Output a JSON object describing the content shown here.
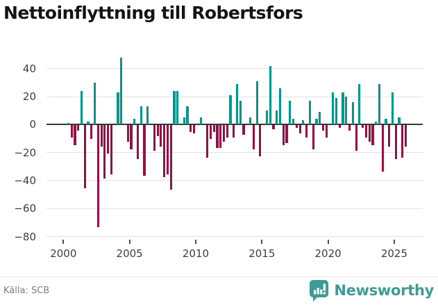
{
  "title": "Nettoinflyttning till Robertsfors",
  "source": "Källa: SCB",
  "brand": {
    "name": "Newsworthy",
    "color": "#3e9c94",
    "icon": "bar-chart-speech-bubble-icon"
  },
  "colors": {
    "positive": "#009790",
    "negative": "#970f46",
    "zero_line": "#363636",
    "gridline": "#e2e2e2",
    "title_text": "#141414",
    "axis_text": "#3d3d3d",
    "source_text": "#7d7d7d"
  },
  "chart_data": {
    "type": "bar",
    "title": "Nettoinflyttning till Robertsfors",
    "frequency": "quarterly",
    "grid": true,
    "ylim": [
      -80,
      50
    ],
    "y_ticks": [
      40,
      20,
      0,
      -20,
      -40,
      -60,
      -80
    ],
    "x_tick_labels": [
      "2000",
      "2005",
      "2010",
      "2015",
      "2020",
      "2025"
    ],
    "positive_color": "#009790",
    "negative_color": "#970f46",
    "quarters": [
      "2000Q1",
      "2000Q2",
      "2000Q3",
      "2000Q4",
      "2001Q1",
      "2001Q2",
      "2001Q3",
      "2001Q4",
      "2002Q1",
      "2002Q2",
      "2002Q3",
      "2002Q4",
      "2003Q1",
      "2003Q2",
      "2003Q3",
      "2003Q4",
      "2004Q1",
      "2004Q2",
      "2004Q3",
      "2004Q4",
      "2005Q1",
      "2005Q2",
      "2005Q3",
      "2005Q4",
      "2006Q1",
      "2006Q2",
      "2006Q3",
      "2006Q4",
      "2007Q1",
      "2007Q2",
      "2007Q3",
      "2007Q4",
      "2008Q1",
      "2008Q2",
      "2008Q3",
      "2008Q4",
      "2009Q1",
      "2009Q2",
      "2009Q3",
      "2009Q4",
      "2010Q1",
      "2010Q2",
      "2010Q3",
      "2010Q4",
      "2011Q1",
      "2011Q2",
      "2011Q3",
      "2011Q4",
      "2012Q1",
      "2012Q2",
      "2012Q3",
      "2012Q4",
      "2013Q1",
      "2013Q2",
      "2013Q3",
      "2013Q4",
      "2014Q1",
      "2014Q2",
      "2014Q3",
      "2014Q4",
      "2015Q1",
      "2015Q2",
      "2015Q3",
      "2015Q4",
      "2016Q1",
      "2016Q2",
      "2016Q3",
      "2016Q4",
      "2017Q1",
      "2017Q2",
      "2017Q3",
      "2017Q4",
      "2018Q1",
      "2018Q2",
      "2018Q3",
      "2018Q4",
      "2019Q1",
      "2019Q2",
      "2019Q3",
      "2019Q4",
      "2020Q1",
      "2020Q2",
      "2020Q3",
      "2020Q4",
      "2021Q1",
      "2021Q2",
      "2021Q3",
      "2021Q4",
      "2022Q1",
      "2022Q2",
      "2022Q3",
      "2022Q4",
      "2023Q1",
      "2023Q2",
      "2023Q3",
      "2023Q4",
      "2024Q1",
      "2024Q2",
      "2024Q3",
      "2024Q4",
      "2025Q1",
      "2025Q2",
      "2025Q3",
      "2025Q4"
    ],
    "values": [
      0,
      1,
      -9,
      -14,
      -4,
      24,
      -45,
      2,
      -10,
      30,
      -73,
      -15,
      -38,
      -20,
      -35,
      0,
      23,
      48,
      0,
      -12,
      -17,
      4,
      -24,
      13,
      -36,
      13,
      0,
      -18,
      -8,
      -15,
      -37,
      -35,
      -46,
      24,
      24,
      0,
      5,
      13,
      -5,
      -6,
      0,
      5,
      0,
      -23,
      -10,
      -5,
      -16,
      -16,
      -12,
      -9,
      21,
      -9,
      29,
      17,
      -7,
      0,
      5,
      -17,
      31,
      -22,
      0,
      10,
      42,
      -3,
      10,
      26,
      -14,
      -13,
      17,
      4,
      -2,
      -6,
      3,
      -9,
      17,
      -17,
      4,
      9,
      -4,
      -9,
      0,
      23,
      19,
      -2,
      23,
      20,
      -4,
      16,
      -18,
      29,
      -2,
      -9,
      -12,
      -14,
      2,
      29,
      -33,
      4,
      -15,
      23,
      -24,
      5,
      -23,
      -15
    ]
  }
}
